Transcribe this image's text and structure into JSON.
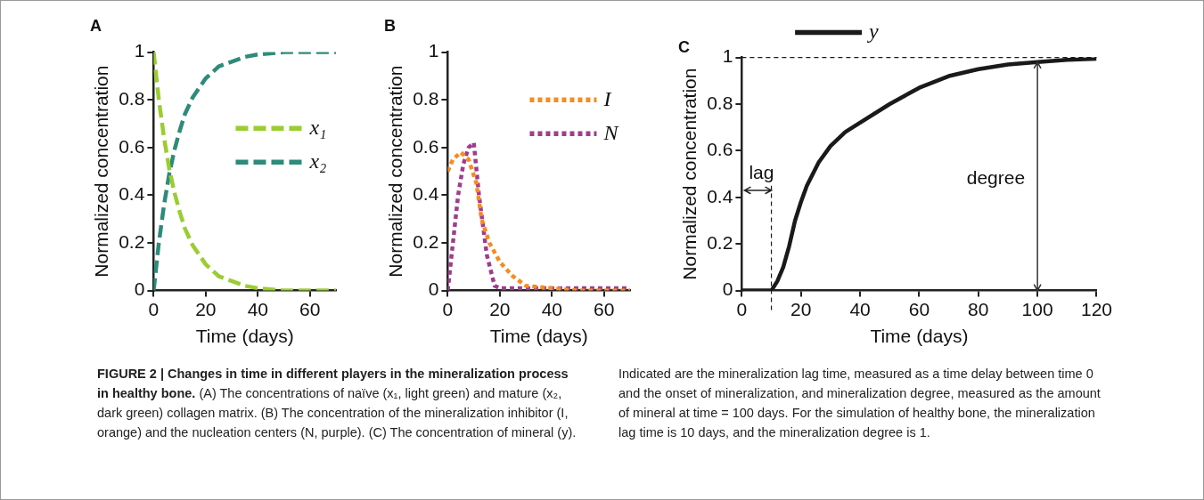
{
  "chart_data": [
    {
      "type": "line",
      "title": "A",
      "xlabel": "Time (days)",
      "ylabel": "Normalized concentration",
      "xlim": [
        0,
        70
      ],
      "xticks": [
        0,
        20,
        40,
        60
      ],
      "ylim": [
        0,
        1
      ],
      "yticks": [
        0,
        0.2,
        0.4,
        0.6,
        0.8,
        1
      ],
      "legend": "right",
      "line_style": "dashed",
      "marker": "none",
      "x": [
        0,
        2,
        4,
        6,
        8,
        10,
        12,
        15,
        20,
        25,
        30,
        35,
        40,
        50,
        60,
        70
      ],
      "series": [
        {
          "name": "x₁",
          "color": "#9acd32",
          "values": [
            1,
            0.8,
            0.64,
            0.51,
            0.41,
            0.33,
            0.26,
            0.19,
            0.11,
            0.06,
            0.04,
            0.02,
            0.01,
            0,
            0,
            0
          ]
        },
        {
          "name": "x₂",
          "color": "#2e8b7a",
          "values": [
            0,
            0.2,
            0.36,
            0.49,
            0.59,
            0.67,
            0.74,
            0.81,
            0.89,
            0.94,
            0.96,
            0.98,
            0.99,
            1,
            1,
            1
          ]
        }
      ]
    },
    {
      "type": "line",
      "title": "B",
      "xlabel": "Time (days)",
      "ylabel": "Normalized concentration",
      "xlim": [
        0,
        70
      ],
      "xticks": [
        0,
        20,
        40,
        60
      ],
      "ylim": [
        0,
        1
      ],
      "yticks": [
        0,
        0.2,
        0.4,
        0.6,
        0.8,
        1
      ],
      "legend": "top right",
      "line_style": "dotted",
      "marker": "none",
      "series": [
        {
          "name": "I",
          "color": "#f68b1f",
          "x": [
            0,
            2,
            5,
            8,
            11,
            13,
            16,
            20,
            25,
            30,
            40,
            50,
            60,
            70
          ],
          "values": [
            0.5,
            0.55,
            0.58,
            0.55,
            0.45,
            0.3,
            0.2,
            0.12,
            0.06,
            0.02,
            0.01,
            0,
            0,
            0
          ]
        },
        {
          "name": "N",
          "color": "#9e3d8c",
          "x": [
            0,
            2,
            4,
            6,
            8,
            10,
            12,
            15,
            18,
            20,
            30,
            40,
            50,
            60,
            70
          ],
          "values": [
            0,
            0.2,
            0.4,
            0.53,
            0.6,
            0.62,
            0.4,
            0.15,
            0.02,
            0.01,
            0.01,
            0.01,
            0.01,
            0.01,
            0.01
          ]
        }
      ]
    },
    {
      "type": "line",
      "title": "C",
      "xlabel": "Time (days)",
      "ylabel": "Normalized concentration",
      "xlim": [
        0,
        120
      ],
      "xticks": [
        0,
        20,
        40,
        60,
        80,
        100,
        120
      ],
      "ylim": [
        0,
        1
      ],
      "yticks": [
        0,
        0.2,
        0.4,
        0.6,
        0.8,
        1
      ],
      "legend": "top",
      "line_style": "solid",
      "marker": "none",
      "series": [
        {
          "name": "y",
          "color": "#1a1a1a",
          "x": [
            0,
            5,
            10,
            12,
            14,
            16,
            18,
            20,
            22,
            26,
            30,
            35,
            40,
            50,
            60,
            70,
            80,
            90,
            100,
            110,
            120
          ],
          "values": [
            0,
            0,
            0,
            0.04,
            0.1,
            0.19,
            0.3,
            0.38,
            0.45,
            0.55,
            0.62,
            0.68,
            0.72,
            0.8,
            0.87,
            0.92,
            0.95,
            0.97,
            0.98,
            0.99,
            0.995
          ]
        }
      ],
      "ref_lines": [
        {
          "axis": "y",
          "value": 1,
          "line_style": "dashed",
          "color": "#1a1a1a"
        },
        {
          "axis": "x",
          "value": 10,
          "line_style": "dashed",
          "color": "#1a1a1a"
        },
        {
          "axis": "x",
          "value": 100,
          "line_style": "solid",
          "color": "#333333",
          "label": "degree"
        }
      ],
      "annotations": [
        "lag"
      ]
    },
    {
      "type": "other",
      "title": "FIGURE 2 | Changes in time in different players in the mineralization process in healthy bone.",
      "annotations": [
        "(A) The concentrations of naïve (x₁, light green) and mature (x₂, dark green) collagen matrix. (B) The concentration of the mineralization inhibitor (I, orange) and the nucleation centers (N, purple). (C) The concentration of mineral (y).",
        "Indicated are the mineralization lag time, measured as a time delay between time 0 and the onset of mineralization, and mineralization degree, measured as the amount of mineral at time = 100 days. For the simulation of healthy bone, the mineralization lag time is 10 days, and the mineralization degree is 1."
      ]
    }
  ]
}
